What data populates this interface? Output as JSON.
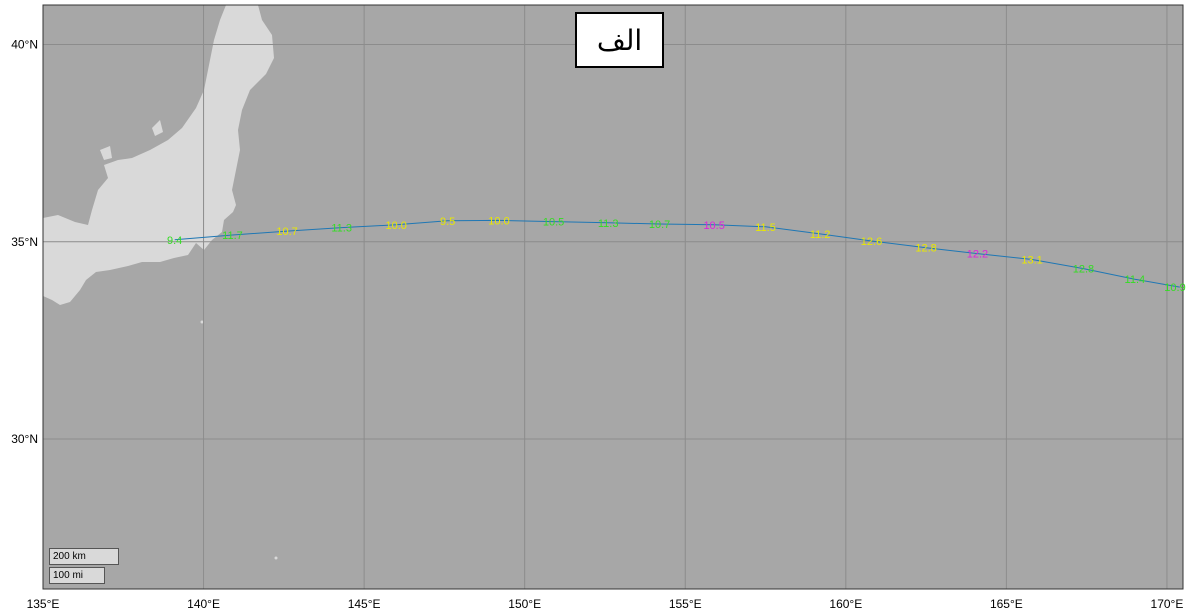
{
  "panel_label": "الف",
  "colors": {
    "ocean": "#a7a7a7",
    "land": "#d9d9d9",
    "grid": "#8c8c8c",
    "track": "#1f77b4",
    "label_green": "#33dd22",
    "label_yellow": "#e8e800",
    "label_magenta": "#dd22dd"
  },
  "axes": {
    "lon_ticks": [
      "135°E",
      "140°E",
      "145°E",
      "150°E",
      "155°E",
      "160°E",
      "165°E",
      "170°E"
    ],
    "lat_ticks": [
      "40°N",
      "35°N",
      "30°N"
    ],
    "lon_range": [
      135,
      170.5
    ],
    "lat_range": [
      26.2,
      41
    ]
  },
  "scale_bar": {
    "km_label": "200 km",
    "mi_label": "100 mi"
  },
  "track": [
    {
      "lon": 139.1,
      "lat": 35.05,
      "label": "9.4",
      "color": "label_green"
    },
    {
      "lon": 140.9,
      "lat": 35.17,
      "label": "11.7",
      "color": "label_green"
    },
    {
      "lon": 142.6,
      "lat": 35.27,
      "label": "10.7",
      "color": "label_yellow"
    },
    {
      "lon": 144.3,
      "lat": 35.36,
      "label": "11.3",
      "color": "label_green"
    },
    {
      "lon": 146.0,
      "lat": 35.43,
      "label": "10.0",
      "color": "label_yellow"
    },
    {
      "lon": 147.6,
      "lat": 35.53,
      "label": "9.5",
      "color": "label_yellow"
    },
    {
      "lon": 149.2,
      "lat": 35.54,
      "label": "10.0",
      "color": "label_yellow"
    },
    {
      "lon": 150.9,
      "lat": 35.51,
      "label": "10.5",
      "color": "label_green"
    },
    {
      "lon": 152.6,
      "lat": 35.48,
      "label": "11.3",
      "color": "label_green"
    },
    {
      "lon": 154.2,
      "lat": 35.45,
      "label": "10.7",
      "color": "label_green"
    },
    {
      "lon": 155.9,
      "lat": 35.43,
      "label": "10.5",
      "color": "label_magenta"
    },
    {
      "lon": 157.5,
      "lat": 35.38,
      "label": "11.5",
      "color": "label_yellow"
    },
    {
      "lon": 159.2,
      "lat": 35.2,
      "label": "11.2",
      "color": "label_yellow"
    },
    {
      "lon": 160.8,
      "lat": 35.02,
      "label": "12.6",
      "color": "label_yellow"
    },
    {
      "lon": 162.5,
      "lat": 34.85,
      "label": "12.8",
      "color": "label_yellow"
    },
    {
      "lon": 164.1,
      "lat": 34.7,
      "label": "12.2",
      "color": "label_magenta"
    },
    {
      "lon": 165.8,
      "lat": 34.55,
      "label": "13.1",
      "color": "label_yellow"
    },
    {
      "lon": 167.4,
      "lat": 34.32,
      "label": "12.8",
      "color": "label_green"
    },
    {
      "lon": 169.0,
      "lat": 34.05,
      "label": "11.4",
      "color": "label_green"
    },
    {
      "lon": 170.4,
      "lat": 33.85,
      "label": "10.9",
      "color": "label_green"
    }
  ]
}
